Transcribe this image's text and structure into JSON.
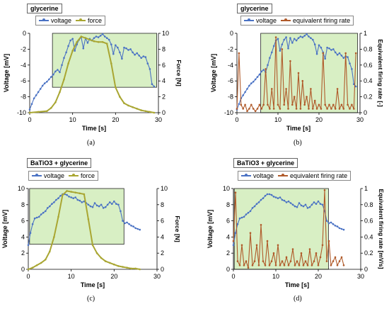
{
  "chart_data": [
    {
      "type": "line",
      "panel_label": "(a)",
      "title": "glycerine",
      "xlabel": "Time   [s]",
      "ylabel_left": "Voltage  [mV]",
      "ylabel_right": "Force  [N]",
      "xlim": [
        0,
        30
      ],
      "xticks": [
        0,
        10,
        20,
        30
      ],
      "ylim_left": [
        -10,
        0
      ],
      "yticks_left": [
        -10,
        -8,
        -6,
        -4,
        -2,
        0
      ],
      "ylim_right": [
        0,
        10
      ],
      "yticks_right": [
        0,
        2,
        4,
        6,
        8,
        10
      ],
      "shade_x": [
        5.3,
        29.6
      ],
      "shade_y_left": [
        -6.8,
        0
      ],
      "legend": [
        "voltage",
        "force"
      ],
      "series": [
        {
          "name": "voltage",
          "axis": "left",
          "color": "#4a72c4",
          "x": [
            0,
            0.5,
            1,
            1.5,
            2,
            2.5,
            3,
            3.5,
            4,
            4.5,
            5,
            5.5,
            6,
            6.5,
            7,
            7.5,
            8,
            8.5,
            9,
            9.5,
            10,
            10.5,
            11,
            11.5,
            12,
            12.5,
            13,
            13.5,
            14,
            14.5,
            15,
            15.5,
            16,
            16.5,
            17,
            17.5,
            18,
            18.5,
            19,
            19.5,
            20,
            20.5,
            21,
            21.5,
            22,
            22.5,
            23,
            23.5,
            24,
            24.5,
            25,
            25.5,
            26,
            26.5,
            27,
            27.5,
            28,
            28.5,
            29
          ],
          "y": [
            -9.6,
            -8.9,
            -8.2,
            -7.8,
            -7.4,
            -7.0,
            -6.6,
            -6.3,
            -6.1,
            -5.8,
            -5.5,
            -5.2,
            -4.8,
            -4.6,
            -4.9,
            -4.0,
            -3.1,
            -2.4,
            -1.6,
            -0.9,
            -0.7,
            -2.2,
            -1.4,
            -0.8,
            -0.5,
            -1.9,
            -0.6,
            -1.2,
            -0.7,
            -0.9,
            -0.6,
            -0.4,
            -0.5,
            -0.3,
            -0.1,
            -0.4,
            -0.6,
            -0.8,
            -1.4,
            -2.6,
            -1.5,
            -1.8,
            -2.4,
            -3.2,
            -1.8,
            -1.9,
            -2.1,
            -2.0,
            -2.4,
            -2.7,
            -2.5,
            -2.8,
            -3.1,
            -2.9,
            -3.0,
            -3.8,
            -4.5,
            -6.4,
            -6.7
          ]
        },
        {
          "name": "force",
          "axis": "right",
          "color": "#a9a632",
          "x": [
            0,
            2,
            4,
            5,
            6,
            7,
            8,
            9,
            10,
            11,
            12,
            13,
            14,
            15,
            16,
            17,
            18,
            19,
            20,
            21,
            22,
            23,
            24,
            25,
            26,
            27,
            28,
            29
          ],
          "y": [
            0.0,
            0.1,
            0.2,
            0.6,
            1.3,
            2.6,
            4.2,
            6.2,
            7.8,
            8.9,
            9.6,
            9.4,
            9.2,
            9.0,
            8.9,
            8.9,
            8.7,
            6.2,
            3.2,
            2.0,
            1.2,
            0.9,
            0.7,
            0.5,
            0.3,
            0.2,
            0.1,
            0.0
          ]
        }
      ]
    },
    {
      "type": "line",
      "panel_label": "(b)",
      "title": "glycerine",
      "xlabel": "Time   [s]",
      "ylabel_left": "Voltage  [mV]",
      "ylabel_right": "Equivalent firing rate  [-]",
      "xlim": [
        0,
        30
      ],
      "xticks": [
        0,
        10,
        20,
        30
      ],
      "ylim_left": [
        -10,
        0
      ],
      "yticks_left": [
        -10,
        -8,
        -6,
        -4,
        -2,
        0
      ],
      "ylim_right": [
        0,
        1
      ],
      "yticks_right": [
        0,
        0.2,
        0.4,
        0.6,
        0.8,
        1
      ],
      "shade_x": [
        5.8,
        29.4
      ],
      "shade_y_left": [
        -10,
        0
      ],
      "legend": [
        "voltage",
        "equivalent firing rate"
      ],
      "series": [
        {
          "name": "voltage",
          "axis": "left",
          "color": "#4a72c4",
          "x": [
            0,
            0.5,
            1,
            1.5,
            2,
            2.5,
            3,
            3.5,
            4,
            4.5,
            5,
            5.5,
            6,
            6.5,
            7,
            7.5,
            8,
            8.5,
            9,
            9.5,
            10,
            10.5,
            11,
            11.5,
            12,
            12.5,
            13,
            13.5,
            14,
            14.5,
            15,
            15.5,
            16,
            16.5,
            17,
            17.5,
            18,
            18.5,
            19,
            19.5,
            20,
            20.5,
            21,
            21.5,
            22,
            22.5,
            23,
            23.5,
            24,
            24.5,
            25,
            25.5,
            26,
            26.5,
            27,
            27.5,
            28,
            28.5,
            29
          ],
          "y": [
            -9.6,
            -8.9,
            -8.2,
            -7.8,
            -7.4,
            -7.0,
            -6.6,
            -6.3,
            -6.1,
            -5.8,
            -5.5,
            -5.2,
            -4.8,
            -4.6,
            -4.9,
            -4.0,
            -3.1,
            -2.4,
            -1.6,
            -0.9,
            -0.7,
            -2.2,
            -1.4,
            -0.8,
            -0.5,
            -1.9,
            -0.6,
            -1.2,
            -0.7,
            -0.9,
            -0.6,
            -0.4,
            -0.5,
            -0.3,
            -0.1,
            -0.4,
            -0.6,
            -0.8,
            -1.4,
            -2.6,
            -1.5,
            -1.8,
            -2.4,
            -3.2,
            -1.8,
            -1.9,
            -2.1,
            -2.0,
            -2.4,
            -2.7,
            -2.5,
            -2.8,
            -3.1,
            -2.9,
            -3.0,
            -3.8,
            -4.5,
            -6.4,
            -6.7
          ]
        },
        {
          "name": "equivalent firing rate",
          "axis": "right",
          "color": "#b05a2a",
          "x": [
            0,
            0.5,
            1,
            1.5,
            2,
            2.5,
            3,
            3.5,
            4,
            4.5,
            5,
            5.5,
            6,
            6.5,
            7,
            7.5,
            8,
            8.5,
            9,
            9.5,
            10,
            10.5,
            11,
            11.5,
            12,
            12.5,
            13,
            13.5,
            14,
            14.5,
            15,
            15.5,
            16,
            16.5,
            17,
            17.5,
            18,
            18.5,
            19,
            19.5,
            20,
            20.5,
            21,
            21.5,
            22,
            22.5,
            23,
            23.5,
            24,
            24.5,
            25,
            25.5,
            26,
            26.5,
            27,
            27.5,
            28,
            28.5,
            29
          ],
          "y": [
            0.05,
            0.75,
            0.1,
            0.05,
            0.1,
            0.02,
            0.05,
            0.1,
            0.05,
            0.02,
            0.05,
            0.1,
            0.05,
            0.1,
            0.55,
            0.1,
            0.05,
            0.3,
            0.05,
            0.95,
            0.1,
            0.05,
            0.8,
            0.1,
            0.3,
            0.05,
            0.65,
            0.1,
            0.2,
            0.05,
            0.5,
            0.05,
            0.4,
            0.1,
            0.2,
            0.05,
            0.3,
            0.05,
            0.15,
            0.05,
            0.1,
            0.05,
            0.75,
            0.1,
            0.05,
            0.1,
            0.05,
            0.1,
            0.05,
            0.3,
            0.05,
            0.1,
            0.05,
            0.75,
            0.1,
            0.05,
            0.1,
            0.05,
            0.75
          ]
        }
      ]
    },
    {
      "type": "line",
      "panel_label": "(c)",
      "title": "BaTiO3 + glycerine",
      "xlabel": "Time   [s]",
      "ylabel_left": "Voltage  [mV]",
      "ylabel_right": "Force  [N]",
      "xlim": [
        0,
        30
      ],
      "xticks": [
        0,
        10,
        20,
        30
      ],
      "ylim_left": [
        0,
        10
      ],
      "yticks_left": [
        0,
        2,
        4,
        6,
        8,
        10
      ],
      "ylim_right": [
        0,
        10
      ],
      "yticks_right": [
        0,
        2,
        4,
        6,
        8,
        10
      ],
      "shade_x": [
        0.3,
        22.3
      ],
      "shade_y_left": [
        3.1,
        10
      ],
      "legend": [
        "voltage",
        "force"
      ],
      "series": [
        {
          "name": "voltage",
          "axis": "left",
          "color": "#4a72c4",
          "x": [
            0,
            0.5,
            1,
            1.5,
            2,
            2.5,
            3,
            3.5,
            4,
            4.5,
            5,
            5.5,
            6,
            6.5,
            7,
            7.5,
            8,
            8.5,
            9,
            9.5,
            10,
            10.5,
            11,
            11.5,
            12,
            12.5,
            13,
            13.5,
            14,
            14.5,
            15,
            15.5,
            16,
            16.5,
            17,
            17.5,
            18,
            18.5,
            19,
            19.5,
            20,
            20.5,
            21,
            21.5,
            22,
            22.5,
            23,
            23.5,
            24,
            24.5,
            25,
            25.5,
            26
          ],
          "y": [
            3.0,
            4.5,
            5.6,
            6.3,
            6.4,
            6.5,
            6.8,
            7.0,
            7.2,
            7.6,
            7.8,
            8.1,
            8.3,
            8.6,
            8.8,
            9.1,
            9.3,
            9.3,
            9.2,
            9.0,
            8.9,
            8.8,
            8.9,
            8.6,
            8.5,
            8.3,
            8.4,
            8.2,
            8.0,
            7.8,
            7.7,
            8.2,
            7.9,
            7.8,
            8.0,
            7.6,
            7.7,
            8.0,
            8.3,
            8.1,
            8.4,
            8.1,
            8.0,
            7.2,
            6.0,
            5.7,
            5.8,
            5.6,
            5.4,
            5.3,
            5.1,
            5.0,
            4.9
          ]
        },
        {
          "name": "force",
          "axis": "right",
          "color": "#a9a632",
          "x": [
            0,
            1,
            2,
            3,
            4,
            5,
            6,
            7,
            8,
            9,
            10,
            11,
            12,
            13,
            14,
            15,
            16,
            17,
            18,
            19,
            20,
            21,
            22,
            23,
            24,
            25,
            26
          ],
          "y": [
            0.0,
            0.2,
            0.5,
            0.8,
            1.2,
            2.2,
            4.0,
            6.5,
            9.2,
            9.7,
            9.6,
            9.5,
            9.4,
            9.3,
            6.2,
            3.0,
            2.0,
            1.4,
            1.0,
            0.8,
            0.6,
            0.4,
            0.3,
            0.2,
            0.1,
            0.1,
            0.0
          ]
        }
      ]
    },
    {
      "type": "line",
      "panel_label": "(d)",
      "title": "BaTiO3 + glycerine",
      "xlabel": "Time   [s]",
      "ylabel_left": "Voltage  [mV]",
      "ylabel_right": "Equivalent firing rate  [mV/s]",
      "xlim": [
        0,
        30
      ],
      "xticks": [
        0,
        10,
        20,
        30
      ],
      "ylim_left": [
        0,
        10
      ],
      "yticks_left": [
        0,
        2,
        4,
        6,
        8,
        10
      ],
      "ylim_right": [
        0,
        1
      ],
      "yticks_right": [
        0,
        0.2,
        0.4,
        0.6,
        0.8,
        1
      ],
      "shade_x": [
        0.2,
        22.4
      ],
      "shade_y_left": [
        0,
        10
      ],
      "legend": [
        "voltage",
        "equivalent firing rate"
      ],
      "series": [
        {
          "name": "voltage",
          "axis": "left",
          "color": "#4a72c4",
          "x": [
            0,
            0.5,
            1,
            1.5,
            2,
            2.5,
            3,
            3.5,
            4,
            4.5,
            5,
            5.5,
            6,
            6.5,
            7,
            7.5,
            8,
            8.5,
            9,
            9.5,
            10,
            10.5,
            11,
            11.5,
            12,
            12.5,
            13,
            13.5,
            14,
            14.5,
            15,
            15.5,
            16,
            16.5,
            17,
            17.5,
            18,
            18.5,
            19,
            19.5,
            20,
            20.5,
            21,
            21.5,
            22,
            22.5,
            23,
            23.5,
            24,
            24.5,
            25,
            25.5,
            26
          ],
          "y": [
            3.0,
            4.5,
            5.6,
            6.3,
            6.4,
            6.5,
            6.8,
            7.0,
            7.2,
            7.6,
            7.8,
            8.1,
            8.3,
            8.6,
            8.8,
            9.1,
            9.3,
            9.3,
            9.2,
            9.0,
            8.9,
            8.8,
            8.9,
            8.6,
            8.5,
            8.3,
            8.4,
            8.2,
            8.0,
            7.8,
            7.7,
            8.2,
            7.9,
            7.8,
            8.0,
            7.6,
            7.7,
            8.0,
            8.3,
            8.1,
            8.4,
            8.1,
            8.0,
            7.2,
            6.0,
            5.7,
            5.8,
            5.6,
            5.4,
            5.3,
            5.1,
            5.0,
            4.9
          ]
        },
        {
          "name": "equivalent firing rate",
          "axis": "right",
          "color": "#b05a2a",
          "x": [
            0,
            0.5,
            1,
            1.5,
            2,
            2.5,
            3,
            3.5,
            4,
            4.5,
            5,
            5.5,
            6,
            6.5,
            7,
            7.5,
            8,
            8.5,
            9,
            9.5,
            10,
            10.5,
            11,
            11.5,
            12,
            12.5,
            13,
            13.5,
            14,
            14.5,
            15,
            15.5,
            16,
            16.5,
            17,
            17.5,
            18,
            18.5,
            19,
            19.5,
            20,
            20.5,
            21,
            21.5,
            22,
            22.5,
            23,
            23.5,
            24,
            24.5,
            25,
            25.5,
            26
          ],
          "y": [
            0.35,
            0.95,
            0.1,
            0.05,
            0.3,
            0.05,
            0.1,
            0.02,
            0.45,
            0.05,
            0.1,
            0.3,
            0.05,
            0.55,
            0.1,
            0.05,
            0.35,
            0.05,
            0.1,
            0.2,
            0.05,
            0.3,
            0.05,
            0.1,
            0.05,
            0.15,
            0.05,
            0.1,
            0.25,
            0.05,
            0.1,
            0.05,
            0.2,
            0.05,
            0.1,
            0.05,
            0.25,
            0.05,
            0.1,
            0.2,
            0.05,
            0.15,
            0.3,
            0.98,
            0.1,
            0.35,
            0.05,
            0.1,
            0.15,
            0.05,
            0.1,
            0.15,
            0.05
          ]
        }
      ]
    }
  ]
}
